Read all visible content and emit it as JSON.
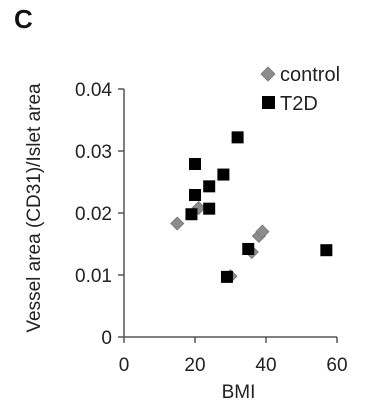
{
  "panel_label": "C",
  "chart_data": {
    "type": "scatter",
    "title": "",
    "xlabel": "BMI",
    "ylabel": "Vessel area (CD31)/Islet area",
    "xlim": [
      0,
      60
    ],
    "ylim": [
      0,
      0.04
    ],
    "xticks": [
      "0",
      "20",
      "40",
      "60"
    ],
    "yticks": [
      "0",
      "0.01",
      "0.02",
      "0.03",
      "0.04"
    ],
    "grid": false,
    "legend_position": "top-right",
    "series": [
      {
        "name": "control",
        "marker": "diamond",
        "color": "#8c8c8c",
        "points": [
          {
            "x": 15,
            "y": 0.0183
          },
          {
            "x": 21,
            "y": 0.0208
          },
          {
            "x": 30,
            "y": 0.0098
          },
          {
            "x": 36,
            "y": 0.0137
          },
          {
            "x": 38,
            "y": 0.0163
          },
          {
            "x": 39,
            "y": 0.017
          }
        ]
      },
      {
        "name": "T2D",
        "marker": "square",
        "color": "#000000",
        "points": [
          {
            "x": 19,
            "y": 0.0198
          },
          {
            "x": 20,
            "y": 0.0229
          },
          {
            "x": 20,
            "y": 0.0279
          },
          {
            "x": 24,
            "y": 0.0243
          },
          {
            "x": 24,
            "y": 0.0207
          },
          {
            "x": 28,
            "y": 0.0262
          },
          {
            "x": 29,
            "y": 0.0097
          },
          {
            "x": 32,
            "y": 0.0322
          },
          {
            "x": 35,
            "y": 0.0142
          },
          {
            "x": 57,
            "y": 0.014
          }
        ]
      }
    ]
  }
}
